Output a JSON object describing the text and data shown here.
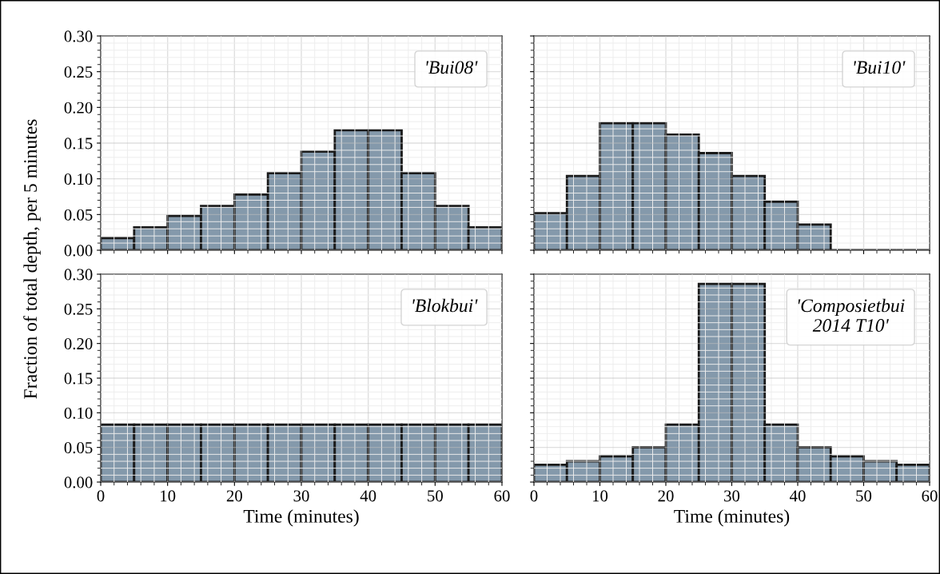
{
  "chart_data": [
    {
      "type": "histogram",
      "bins": [
        0,
        5,
        10,
        15,
        20,
        25,
        30,
        35,
        40,
        45,
        50,
        55,
        60
      ],
      "values": [
        0.017,
        0.032,
        0.048,
        0.062,
        0.078,
        0.108,
        0.138,
        0.168,
        0.168,
        0.108,
        0.062,
        0.032
      ],
      "color": "#8499ab",
      "xlim": [
        0,
        60
      ],
      "ylim": [
        0,
        0.3
      ],
      "yticks": [
        {
          "value": 0,
          "label": "0.00"
        },
        {
          "value": 0.05,
          "label": "0.05"
        },
        {
          "value": 0.1,
          "label": "0.10"
        },
        {
          "value": 0.15,
          "label": "0.15"
        },
        {
          "value": 0.2,
          "label": "0.20"
        },
        {
          "value": 0.25,
          "label": "0.25"
        },
        {
          "value": 0.3,
          "label": "0.30"
        }
      ],
      "grid": true,
      "tick_labels": "y",
      "annotations": [
        "'Bui08'"
      ],
      "ylabel": "Fraction of total depth, per 5 minutes"
    },
    {
      "type": "histogram",
      "bins": [
        0,
        5,
        10,
        15,
        20,
        25,
        30,
        35,
        40,
        45,
        50,
        55,
        60
      ],
      "values": [
        0.052,
        0.104,
        0.178,
        0.178,
        0.162,
        0.136,
        0.104,
        0.068,
        0.036,
        0,
        0,
        0
      ],
      "color": "#8499ab",
      "xlim": [
        0,
        60
      ],
      "ylim": [
        0,
        0.3
      ],
      "grid": true,
      "tick_labels": false,
      "annotations": [
        "'Bui10'"
      ]
    },
    {
      "type": "histogram",
      "bins": [
        0,
        5,
        10,
        15,
        20,
        25,
        30,
        35,
        40,
        45,
        50,
        55,
        60
      ],
      "values": [
        0.083,
        0.083,
        0.083,
        0.083,
        0.083,
        0.083,
        0.083,
        0.083,
        0.083,
        0.083,
        0.083,
        0.083
      ],
      "color": "#8499ab",
      "xlim": [
        0,
        60
      ],
      "xticks": [
        0,
        10,
        20,
        30,
        40,
        50,
        60
      ],
      "ylim": [
        0,
        0.3
      ],
      "yticks": [
        {
          "value": 0,
          "label": "0.00"
        },
        {
          "value": 0.05,
          "label": "0.05"
        },
        {
          "value": 0.1,
          "label": "0.10"
        },
        {
          "value": 0.15,
          "label": "0.15"
        },
        {
          "value": 0.2,
          "label": "0.20"
        },
        {
          "value": 0.25,
          "label": "0.25"
        },
        {
          "value": 0.3,
          "label": "0.30"
        }
      ],
      "grid": true,
      "annotations": [
        "'Blokbui'"
      ],
      "xlabel": "Time (minutes)"
    },
    {
      "type": "histogram",
      "bins": [
        0,
        5,
        10,
        15,
        20,
        25,
        30,
        35,
        40,
        45,
        50,
        55,
        60
      ],
      "values": [
        0.025,
        0.03,
        0.037,
        0.05,
        0.083,
        0.286,
        0.286,
        0.083,
        0.05,
        0.037,
        0.03,
        0.025
      ],
      "color": "#8499ab",
      "xlim": [
        0,
        60
      ],
      "xticks": [
        0,
        10,
        20,
        30,
        40,
        50,
        60
      ],
      "ylim": [
        0,
        0.3
      ],
      "grid": true,
      "tick_labels": "x",
      "annotations": [
        "'Composietbui\n2014 T10'"
      ],
      "xlabel": "Time (minutes)"
    }
  ]
}
